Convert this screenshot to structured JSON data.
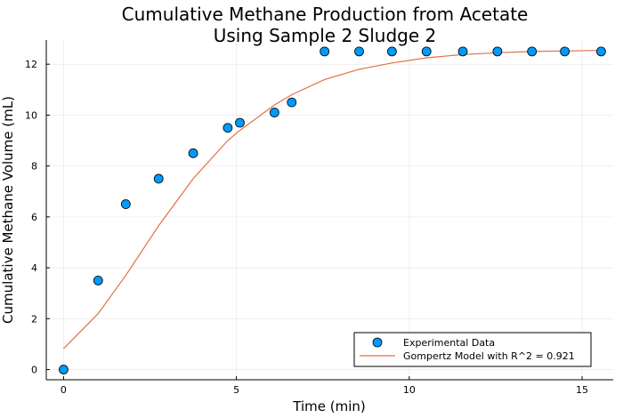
{
  "chart_data": {
    "type": "scatter",
    "title_line1": "Cumulative Methane Production from Acetate",
    "title_line2": "Using Sample 2 Sludge 2",
    "xlabel": "Time (min)",
    "ylabel": "Cumulative Methane Volume (mL)",
    "xlim": [
      -0.5,
      15.9
    ],
    "ylim": [
      -0.4,
      12.95
    ],
    "xticks": [
      0,
      5,
      10,
      15
    ],
    "yticks": [
      0,
      2,
      4,
      6,
      8,
      10,
      12
    ],
    "grid": true,
    "legend_position": "bottom-right",
    "series": [
      {
        "name": "Experimental Data",
        "kind": "scatter",
        "color": "#009AF9",
        "x": [
          0,
          1,
          1.8,
          2.75,
          3.75,
          4.75,
          5.1,
          6.1,
          6.6,
          7.55,
          8.55,
          9.5,
          10.5,
          11.55,
          12.55,
          13.55,
          14.5,
          15.55
        ],
        "y": [
          0,
          3.5,
          6.5,
          7.5,
          8.5,
          9.5,
          9.7,
          10.1,
          10.5,
          12.5,
          12.5,
          12.5,
          12.5,
          12.5,
          12.5,
          12.5,
          12.5,
          12.5
        ]
      },
      {
        "name": "Gompertz Model with R^2 = 0.921",
        "kind": "line",
        "color": "#E26F46",
        "x": [
          0,
          1,
          1.8,
          2.75,
          3.75,
          4.75,
          5.1,
          6.1,
          6.6,
          7.55,
          8.55,
          9.5,
          10.5,
          11.55,
          12.55,
          13.55,
          14.5,
          15.55
        ],
        "y": [
          0.82,
          2.2,
          3.7,
          5.65,
          7.5,
          9.0,
          9.4,
          10.4,
          10.8,
          11.4,
          11.8,
          12.05,
          12.25,
          12.38,
          12.45,
          12.5,
          12.52,
          12.54
        ]
      }
    ]
  }
}
